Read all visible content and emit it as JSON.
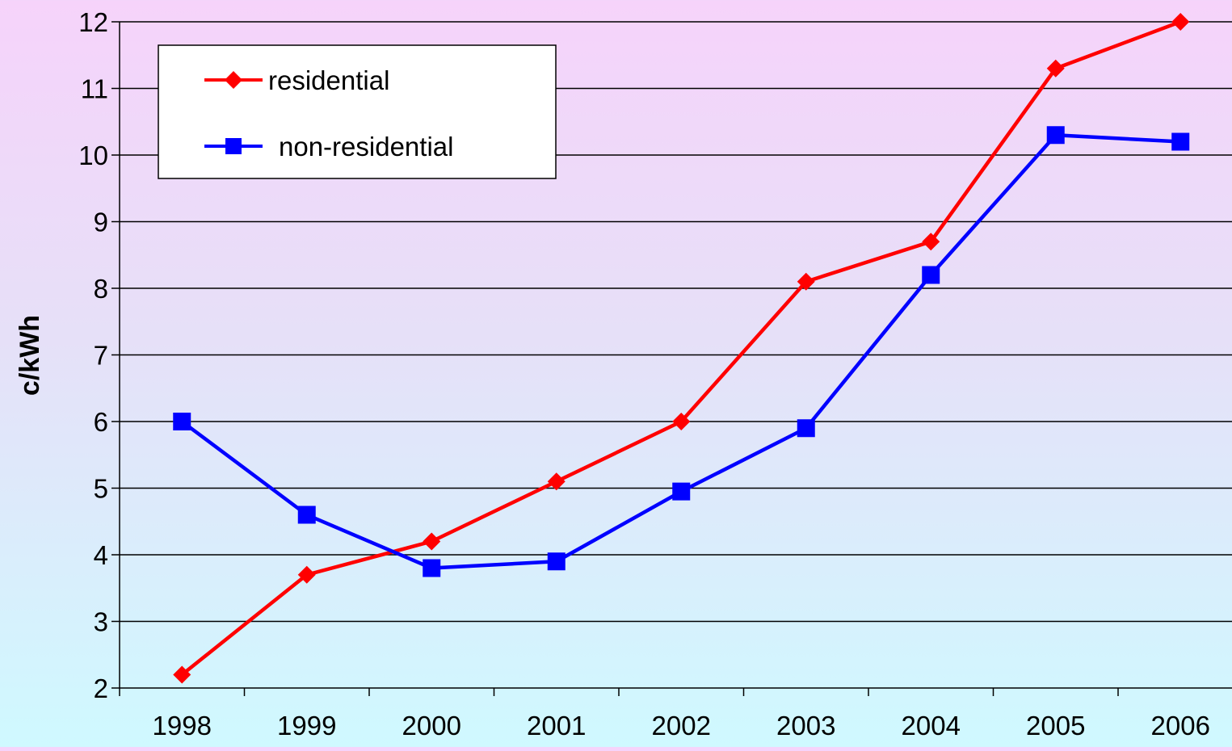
{
  "chart_data": {
    "type": "line",
    "title": "",
    "xlabel": "",
    "ylabel": "c/kWh",
    "categories": [
      "1998",
      "1999",
      "2000",
      "2001",
      "2002",
      "2003",
      "2004",
      "2005",
      "2006"
    ],
    "ylim": [
      2,
      12
    ],
    "yticks": [
      2,
      3,
      4,
      5,
      6,
      7,
      8,
      9,
      10,
      11,
      12
    ],
    "grid": true,
    "legend_position": "top-left",
    "series": [
      {
        "name": "residential",
        "color": "#ff0000",
        "marker": "diamond",
        "values": [
          2.2,
          3.7,
          4.2,
          5.1,
          6.0,
          8.1,
          8.7,
          11.3,
          12.0
        ]
      },
      {
        "name": "non-residential",
        "color": "#0000ff",
        "marker": "square",
        "values": [
          6.0,
          4.6,
          3.8,
          3.9,
          4.95,
          5.9,
          8.2,
          10.3,
          10.2
        ]
      }
    ]
  }
}
